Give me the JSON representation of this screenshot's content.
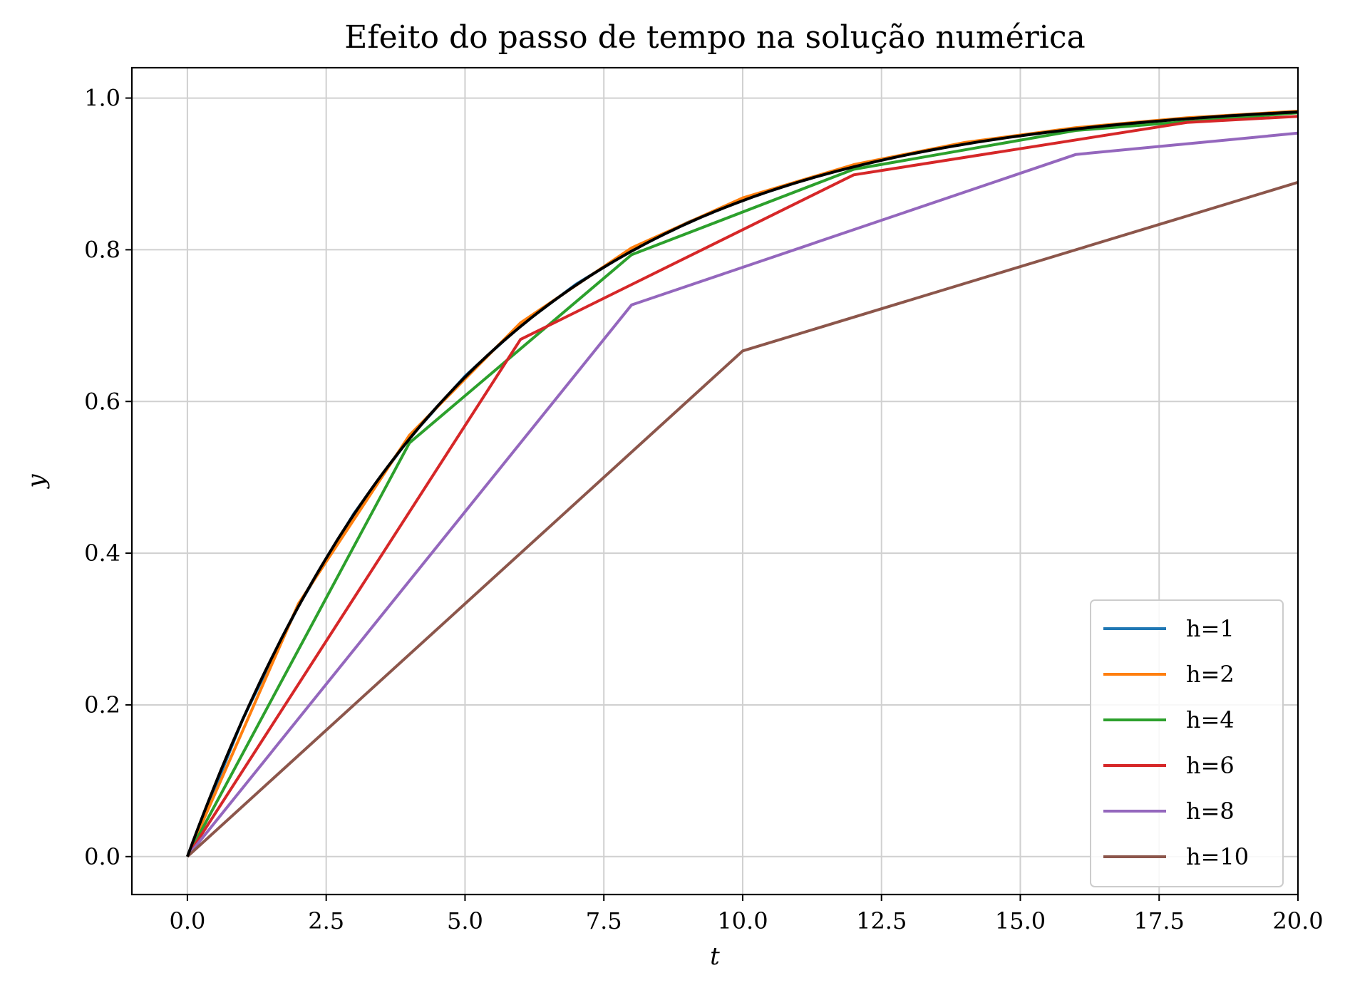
{
  "chart_data": {
    "type": "line",
    "title": "Efeito do passo de tempo na solução numérica",
    "xlabel": "t",
    "ylabel": "y",
    "xlim": [
      -1,
      20
    ],
    "ylim": [
      -0.05,
      1.04
    ],
    "xticks": [
      0,
      2.5,
      5,
      7.5,
      10,
      12.5,
      15,
      17.5,
      20
    ],
    "xtick_labels": [
      "0.0",
      "2.5",
      "5.0",
      "7.5",
      "10.0",
      "12.5",
      "15.0",
      "17.5",
      "20.0"
    ],
    "yticks": [
      0,
      0.2,
      0.4,
      0.6,
      0.8,
      1.0
    ],
    "ytick_labels": [
      "0.0",
      "0.2",
      "0.4",
      "0.6",
      "0.8",
      "1.0"
    ],
    "grid": true,
    "legend_position": "bottom-right",
    "series": [
      {
        "name": "h=1",
        "color": "#1f77b4",
        "x": [
          0,
          1,
          2,
          3,
          4,
          5,
          6,
          7,
          8,
          9,
          10,
          11,
          12,
          13,
          14,
          15,
          16,
          17,
          18,
          19,
          20
        ],
        "y": [
          0,
          0.1818,
          0.3306,
          0.4523,
          0.5519,
          0.6334,
          0.7,
          0.7546,
          0.7992,
          0.8357,
          0.8656,
          0.89,
          0.91,
          0.9264,
          0.9398,
          0.9507,
          0.9597,
          0.967,
          0.973,
          0.9779,
          0.9819
        ]
      },
      {
        "name": "h=2",
        "color": "#ff7f0e",
        "x": [
          0,
          2,
          4,
          6,
          8,
          10,
          12,
          14,
          16,
          18,
          20
        ],
        "y": [
          0,
          0.3333,
          0.5556,
          0.7037,
          0.8025,
          0.8683,
          0.9122,
          0.9415,
          0.961,
          0.974,
          0.9827
        ]
      },
      {
        "name": "h=4",
        "color": "#2ca02c",
        "x": [
          0,
          4,
          8,
          12,
          16,
          20
        ],
        "y": [
          0,
          0.5455,
          0.7934,
          0.9061,
          0.9573,
          0.9806
        ]
      },
      {
        "name": "h=6",
        "color": "#d62728",
        "x": [
          0,
          6,
          12,
          18,
          20
        ],
        "y": [
          0,
          0.6818,
          0.8988,
          0.9678,
          0.9759
        ]
      },
      {
        "name": "h=8",
        "color": "#9467bd",
        "x": [
          0,
          8,
          16,
          20
        ],
        "y": [
          0,
          0.7273,
          0.9256,
          0.9537
        ]
      },
      {
        "name": "h=10",
        "color": "#8c564b",
        "x": [
          0,
          10,
          20
        ],
        "y": [
          0,
          0.6667,
          0.8889
        ]
      }
    ],
    "exact": {
      "color": "#000000",
      "tau": 5,
      "t_max": 20
    }
  }
}
